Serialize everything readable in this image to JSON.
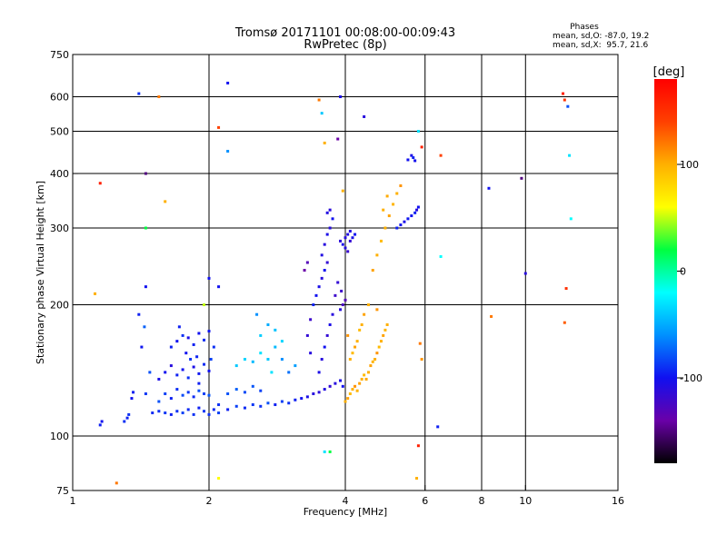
{
  "title_line1": "Tromsø 20171101 00:08:00-00:09:43",
  "title_line2": "RwPretec (8p)",
  "stats": {
    "header": "Phases",
    "line_o": "mean, sd,O: -87.0, 19.2",
    "line_x": "mean, sd,X:  95.7, 21.6"
  },
  "colorbar": {
    "unit_label": "[deg]",
    "ticks": [
      {
        "value": 100,
        "label": "100"
      },
      {
        "value": 0,
        "label": "0"
      },
      {
        "value": -100,
        "label": "-100"
      }
    ],
    "range": [
      -180,
      180
    ],
    "stops": [
      "#000000",
      "#6a00a8",
      "#1010f0",
      "#0090ff",
      "#00ffff",
      "#00ff40",
      "#ffff00",
      "#ffb000",
      "#ff4000",
      "#ff0000"
    ]
  },
  "chart_data": {
    "type": "scatter",
    "title": "Tromsø 20171101 00:08:00-00:09:43",
    "subtitle": "RwPretec (8p)",
    "xlabel": "Frequency [MHz]",
    "ylabel": "Stationary phase Virtual Height [km]",
    "xscale": "log",
    "yscale": "log",
    "xlim": [
      1,
      16
    ],
    "ylim": [
      75,
      750
    ],
    "grid": true,
    "x_ticks": [
      {
        "value": 1,
        "label": "1"
      },
      {
        "value": 2,
        "label": "2"
      },
      {
        "value": 4,
        "label": "4"
      },
      {
        "value": 6,
        "label": "6"
      },
      {
        "value": 8,
        "label": "8"
      },
      {
        "value": 10,
        "label": "10"
      },
      {
        "value": 16,
        "label": "16"
      }
    ],
    "y_ticks": [
      {
        "value": 75,
        "label": "75"
      },
      {
        "value": 100,
        "label": "100"
      },
      {
        "value": 200,
        "label": "200"
      },
      {
        "value": 300,
        "label": "300"
      },
      {
        "value": 400,
        "label": "400"
      },
      {
        "value": 500,
        "label": "500"
      },
      {
        "value": 600,
        "label": "600"
      },
      {
        "value": 750,
        "label": "750"
      }
    ],
    "x_gridlines": [
      2,
      4,
      6,
      8,
      10
    ],
    "y_gridlines": [
      100,
      200,
      300,
      400,
      500,
      600
    ],
    "point_fields": [
      "frequency_MHz",
      "virtual_height_km",
      "phase_deg"
    ],
    "points": [
      [
        1.15,
        106,
        -95
      ],
      [
        1.16,
        108,
        -100
      ],
      [
        1.3,
        108,
        -90
      ],
      [
        1.32,
        110,
        -95
      ],
      [
        1.33,
        112,
        -90
      ],
      [
        1.35,
        122,
        -100
      ],
      [
        1.36,
        126,
        -95
      ],
      [
        1.5,
        113,
        -92
      ],
      [
        1.55,
        114,
        -90
      ],
      [
        1.6,
        113,
        -88
      ],
      [
        1.65,
        112,
        -95
      ],
      [
        1.7,
        114,
        -90
      ],
      [
        1.75,
        113,
        -85
      ],
      [
        1.8,
        115,
        -92
      ],
      [
        1.85,
        112,
        -90
      ],
      [
        1.9,
        116,
        -95
      ],
      [
        1.95,
        114,
        -88
      ],
      [
        2.0,
        112,
        -90
      ],
      [
        2.05,
        115,
        -92
      ],
      [
        2.1,
        113,
        -85
      ],
      [
        1.55,
        120,
        -80
      ],
      [
        1.6,
        125,
        -85
      ],
      [
        1.65,
        122,
        -95
      ],
      [
        1.7,
        128,
        -90
      ],
      [
        1.75,
        124,
        -82
      ],
      [
        1.8,
        126,
        -88
      ],
      [
        1.85,
        123,
        -92
      ],
      [
        1.9,
        127,
        -80
      ],
      [
        1.95,
        125,
        -85
      ],
      [
        2.0,
        124,
        -78
      ],
      [
        1.55,
        135,
        -105
      ],
      [
        1.6,
        140,
        -100
      ],
      [
        1.65,
        145,
        -110
      ],
      [
        1.7,
        138,
        -95
      ],
      [
        1.75,
        142,
        -100
      ],
      [
        1.8,
        136,
        -90
      ],
      [
        1.85,
        144,
        -105
      ],
      [
        1.9,
        139,
        -98
      ],
      [
        1.95,
        146,
        -92
      ],
      [
        2.0,
        141,
        -100
      ],
      [
        1.65,
        160,
        -95
      ],
      [
        1.7,
        165,
        -100
      ],
      [
        1.75,
        170,
        -90
      ],
      [
        1.8,
        168,
        -105
      ],
      [
        1.85,
        162,
        -95
      ],
      [
        1.9,
        172,
        -100
      ],
      [
        1.95,
        166,
        -92
      ],
      [
        2.0,
        174,
        -98
      ],
      [
        2.05,
        160,
        -90
      ],
      [
        1.72,
        178,
        -95
      ],
      [
        1.78,
        155,
        -100
      ],
      [
        1.82,
        150,
        -88
      ],
      [
        1.88,
        152,
        -94
      ],
      [
        2.02,
        150,
        -85
      ],
      [
        1.9,
        132,
        -96
      ],
      [
        1.45,
        125,
        -88
      ],
      [
        1.48,
        140,
        -80
      ],
      [
        1.42,
        160,
        -98
      ],
      [
        1.44,
        178,
        -75
      ],
      [
        1.4,
        190,
        -95
      ],
      [
        2.1,
        118,
        -90
      ],
      [
        2.2,
        115,
        -95
      ],
      [
        2.3,
        117,
        -85
      ],
      [
        2.4,
        116,
        -92
      ],
      [
        2.5,
        118,
        -88
      ],
      [
        2.6,
        117,
        -90
      ],
      [
        2.7,
        119,
        -80
      ],
      [
        2.8,
        118,
        -95
      ],
      [
        2.9,
        120,
        -85
      ],
      [
        3.0,
        119,
        -90
      ],
      [
        3.1,
        121,
        -95
      ],
      [
        3.2,
        122,
        -100
      ],
      [
        3.3,
        123,
        -105
      ],
      [
        3.4,
        125,
        -110
      ],
      [
        3.5,
        126,
        -112
      ],
      [
        3.6,
        128,
        -108
      ],
      [
        3.7,
        130,
        -115
      ],
      [
        3.8,
        132,
        -110
      ],
      [
        3.9,
        134,
        -105
      ],
      [
        3.95,
        130,
        -100
      ],
      [
        2.2,
        125,
        -80
      ],
      [
        2.3,
        128,
        -75
      ],
      [
        2.4,
        126,
        -82
      ],
      [
        2.5,
        130,
        -78
      ],
      [
        2.6,
        127,
        -85
      ],
      [
        2.3,
        145,
        -40
      ],
      [
        2.4,
        150,
        -35
      ],
      [
        2.5,
        148,
        -45
      ],
      [
        2.6,
        155,
        -30
      ],
      [
        2.7,
        150,
        -40
      ],
      [
        2.8,
        160,
        -45
      ],
      [
        2.9,
        165,
        -35
      ],
      [
        2.7,
        180,
        -50
      ],
      [
        2.8,
        175,
        -42
      ],
      [
        2.6,
        170,
        -38
      ],
      [
        2.9,
        150,
        -60
      ],
      [
        3.0,
        140,
        -70
      ],
      [
        3.1,
        145,
        -55
      ],
      [
        2.55,
        190,
        -60
      ],
      [
        2.75,
        140,
        -30
      ],
      [
        3.5,
        140,
        -105
      ],
      [
        3.55,
        150,
        -110
      ],
      [
        3.6,
        160,
        -100
      ],
      [
        3.65,
        170,
        -115
      ],
      [
        3.7,
        180,
        -105
      ],
      [
        3.75,
        190,
        -110
      ],
      [
        3.4,
        200,
        -95
      ],
      [
        3.45,
        210,
        -100
      ],
      [
        3.5,
        220,
        -105
      ],
      [
        3.55,
        230,
        -110
      ],
      [
        3.6,
        240,
        -100
      ],
      [
        3.65,
        250,
        -115
      ],
      [
        3.55,
        260,
        -108
      ],
      [
        3.6,
        275,
        -110
      ],
      [
        3.65,
        290,
        -105
      ],
      [
        3.7,
        300,
        -110
      ],
      [
        3.75,
        315,
        -100
      ],
      [
        3.65,
        325,
        -108
      ],
      [
        3.7,
        330,
        -112
      ],
      [
        3.8,
        210,
        -120
      ],
      [
        3.85,
        225,
        -115
      ],
      [
        3.9,
        195,
        -110
      ],
      [
        3.35,
        185,
        -120
      ],
      [
        3.3,
        170,
        -115
      ],
      [
        3.35,
        155,
        -110
      ],
      [
        3.9,
        280,
        -112
      ],
      [
        3.95,
        275,
        -105
      ],
      [
        4.0,
        285,
        -110
      ],
      [
        4.05,
        290,
        -108
      ],
      [
        4.1,
        280,
        -115
      ],
      [
        4.15,
        285,
        -105
      ],
      [
        4.0,
        270,
        -110
      ],
      [
        4.05,
        265,
        -118
      ],
      [
        4.1,
        295,
        -108
      ],
      [
        4.2,
        290,
        -100
      ],
      [
        3.95,
        200,
        -125
      ],
      [
        4.0,
        205,
        -130
      ],
      [
        3.92,
        215,
        -120
      ],
      [
        3.25,
        240,
        -140
      ],
      [
        3.3,
        250,
        -130
      ],
      [
        4.0,
        120,
        100
      ],
      [
        4.05,
        122,
        105
      ],
      [
        4.1,
        125,
        95
      ],
      [
        4.15,
        128,
        100
      ],
      [
        4.2,
        130,
        110
      ],
      [
        4.25,
        127,
        98
      ],
      [
        4.3,
        132,
        105
      ],
      [
        4.35,
        135,
        100
      ],
      [
        4.4,
        138,
        95
      ],
      [
        4.45,
        135,
        102
      ],
      [
        4.5,
        140,
        100
      ],
      [
        4.55,
        145,
        105
      ],
      [
        4.6,
        148,
        98
      ],
      [
        4.65,
        150,
        100
      ],
      [
        4.7,
        155,
        110
      ],
      [
        4.75,
        160,
        95
      ],
      [
        4.8,
        165,
        100
      ],
      [
        4.85,
        170,
        105
      ],
      [
        4.9,
        175,
        98
      ],
      [
        4.95,
        180,
        100
      ],
      [
        4.1,
        150,
        100
      ],
      [
        4.15,
        155,
        95
      ],
      [
        4.2,
        160,
        105
      ],
      [
        4.25,
        165,
        100
      ],
      [
        4.05,
        170,
        110
      ],
      [
        4.3,
        175,
        95
      ],
      [
        4.35,
        180,
        100
      ],
      [
        4.4,
        190,
        105
      ],
      [
        4.5,
        200,
        100
      ],
      [
        4.7,
        195,
        110
      ],
      [
        4.6,
        240,
        105
      ],
      [
        4.7,
        260,
        100
      ],
      [
        4.8,
        280,
        95
      ],
      [
        4.9,
        300,
        100
      ],
      [
        5.0,
        320,
        105
      ],
      [
        5.1,
        340,
        98
      ],
      [
        5.2,
        360,
        100
      ],
      [
        5.3,
        375,
        110
      ],
      [
        4.95,
        355,
        102
      ],
      [
        4.85,
        330,
        100
      ],
      [
        5.2,
        300,
        -95
      ],
      [
        5.3,
        305,
        -100
      ],
      [
        5.4,
        310,
        -105
      ],
      [
        5.5,
        315,
        -98
      ],
      [
        5.6,
        320,
        -100
      ],
      [
        5.7,
        325,
        -95
      ],
      [
        5.75,
        330,
        -110
      ],
      [
        5.8,
        335,
        -100
      ],
      [
        5.5,
        430,
        -100
      ],
      [
        5.6,
        440,
        -105
      ],
      [
        5.65,
        435,
        -95
      ],
      [
        5.7,
        428,
        -102
      ],
      [
        1.15,
        380,
        160
      ],
      [
        1.45,
        400,
        -150
      ],
      [
        1.4,
        610,
        -90
      ],
      [
        1.55,
        600,
        120
      ],
      [
        2.2,
        645,
        -100
      ],
      [
        2.1,
        510,
        140
      ],
      [
        2.2,
        450,
        -60
      ],
      [
        3.5,
        590,
        120
      ],
      [
        3.55,
        550,
        -40
      ],
      [
        3.6,
        470,
        100
      ],
      [
        3.9,
        600,
        -105
      ],
      [
        3.85,
        480,
        -140
      ],
      [
        3.95,
        365,
        100
      ],
      [
        4.4,
        540,
        -110
      ],
      [
        5.8,
        500,
        -30
      ],
      [
        5.9,
        460,
        160
      ],
      [
        6.5,
        440,
        140
      ],
      [
        8.3,
        370,
        -100
      ],
      [
        9.8,
        390,
        -150
      ],
      [
        12.1,
        610,
        160
      ],
      [
        12.2,
        590,
        150
      ],
      [
        12.4,
        570,
        -80
      ],
      [
        12.5,
        440,
        -30
      ],
      [
        12.6,
        315,
        -20
      ],
      [
        12.3,
        218,
        150
      ],
      [
        12.2,
        182,
        130
      ],
      [
        10.0,
        236,
        -110
      ],
      [
        8.4,
        188,
        120
      ],
      [
        6.5,
        258,
        -20
      ],
      [
        6.4,
        105,
        -95
      ],
      [
        5.85,
        163,
        120
      ],
      [
        5.9,
        150,
        110
      ],
      [
        5.8,
        95,
        160
      ],
      [
        5.75,
        80,
        100
      ],
      [
        1.25,
        78,
        120
      ],
      [
        1.12,
        212,
        100
      ],
      [
        1.45,
        220,
        -100
      ],
      [
        1.45,
        300,
        20
      ],
      [
        1.6,
        345,
        100
      ],
      [
        1.95,
        200,
        50
      ],
      [
        2.1,
        80,
        60
      ],
      [
        3.6,
        92,
        -30
      ],
      [
        3.7,
        92,
        20
      ],
      [
        2.0,
        230,
        -100
      ],
      [
        2.1,
        220,
        -100
      ]
    ]
  }
}
